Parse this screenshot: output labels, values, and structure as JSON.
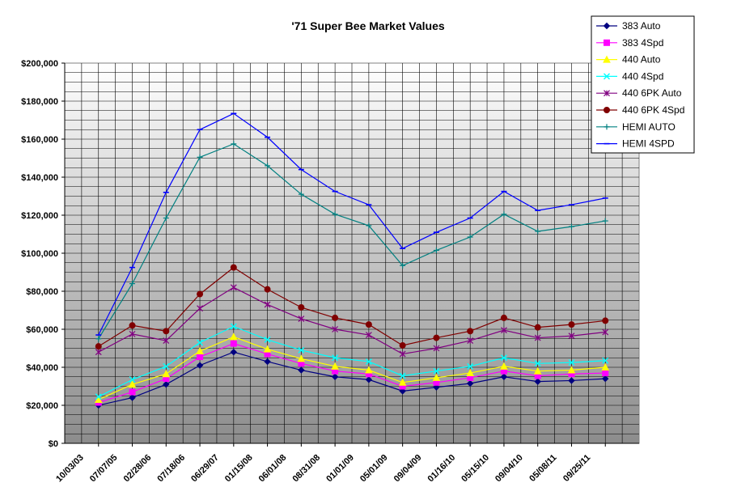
{
  "chart_data": {
    "type": "line",
    "title": "'71 Super Bee Market Values",
    "xlabel": "",
    "ylabel": "",
    "ylim": [
      0,
      200000
    ],
    "ytick_labels": [
      "$0",
      "$20,000",
      "$40,000",
      "$60,000",
      "$80,000",
      "$100,000",
      "$120,000",
      "$140,000",
      "$160,000",
      "$180,000",
      "$200,000"
    ],
    "categories": [
      "10/03/03",
      "07/07/05",
      "02/28/06",
      "07/18/06",
      "06/29/07",
      "01/15/08",
      "06/01/08",
      "08/31/08",
      "01/01/09",
      "05/01/09",
      "09/04/09",
      "01/16/10",
      "05/15/10",
      "09/04/10",
      "05/08/11",
      "09/25/11"
    ],
    "grid": true,
    "legend_position": "top-right",
    "series": [
      {
        "name": "383 Auto",
        "color": "#000080",
        "marker": "diamond",
        "values": [
          20000,
          24000,
          31000,
          41000,
          48000,
          43000,
          38500,
          35000,
          33500,
          27500,
          29500,
          31500,
          35000,
          32500,
          33000,
          34000
        ]
      },
      {
        "name": "383 4Spd",
        "color": "#ff00ff",
        "marker": "square",
        "values": [
          21500,
          27000,
          34000,
          45500,
          52500,
          47000,
          42000,
          38000,
          36500,
          30000,
          32000,
          34500,
          38000,
          35500,
          36500,
          37000
        ]
      },
      {
        "name": "440 Auto",
        "color": "#ffff00",
        "marker": "triangle",
        "values": [
          23000,
          31000,
          36500,
          48500,
          56000,
          49500,
          44500,
          40500,
          38500,
          32000,
          34500,
          37000,
          40500,
          38000,
          38500,
          40000
        ]
      },
      {
        "name": "440 4Spd",
        "color": "#00ffff",
        "marker": "x",
        "values": [
          24500,
          33500,
          40500,
          53000,
          61500,
          54500,
          49000,
          45000,
          43000,
          35500,
          38000,
          40500,
          45000,
          42000,
          42500,
          43500
        ]
      },
      {
        "name": "440 6PK Auto",
        "color": "#800080",
        "marker": "star",
        "values": [
          48000,
          57500,
          54000,
          71000,
          82000,
          73000,
          65500,
          60000,
          57000,
          47000,
          50000,
          54000,
          59500,
          55500,
          56500,
          58500
        ]
      },
      {
        "name": "440 6PK 4Spd",
        "color": "#800000",
        "marker": "circle",
        "values": [
          51000,
          62000,
          59000,
          78500,
          92500,
          81000,
          71500,
          66000,
          62500,
          51500,
          55500,
          59000,
          66000,
          61000,
          62500,
          64500
        ]
      },
      {
        "name": "HEMI AUTO",
        "color": "#008080",
        "marker": "plus",
        "values": [
          55000,
          84000,
          118500,
          150500,
          157500,
          146000,
          131000,
          120500,
          114500,
          93500,
          101500,
          108500,
          120500,
          111500,
          114000,
          117000
        ]
      },
      {
        "name": "HEMI 4SPD",
        "color": "#0000ff",
        "marker": "dash",
        "values": [
          57000,
          92500,
          132000,
          165000,
          173500,
          161000,
          144000,
          132500,
          125500,
          102500,
          111000,
          118500,
          132500,
          122500,
          125500,
          129000
        ]
      }
    ]
  }
}
